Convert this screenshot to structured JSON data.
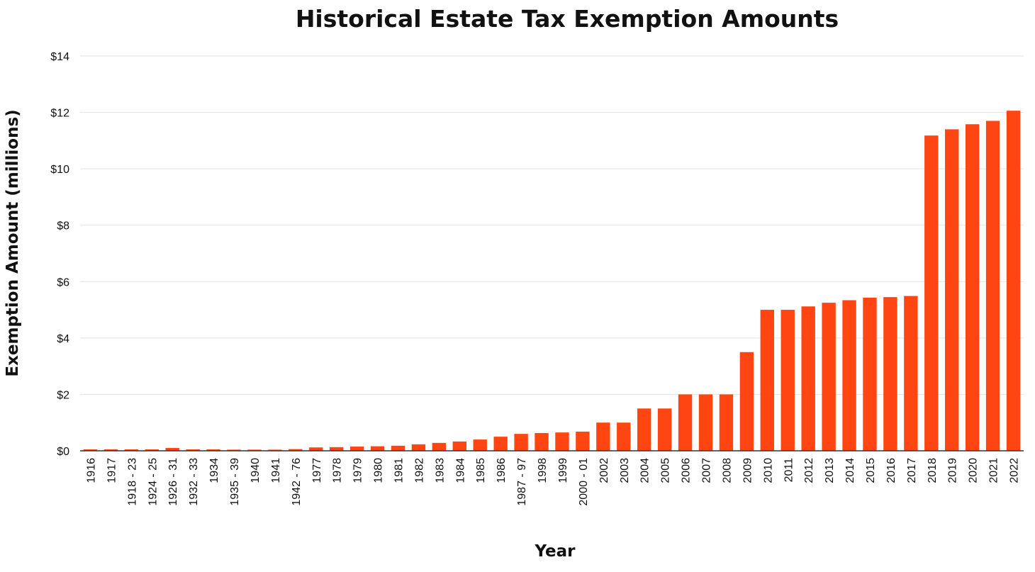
{
  "chart_data": {
    "type": "bar",
    "title": "Historical Estate Tax Exemption Amounts",
    "xlabel": "Year",
    "ylabel": "Exemption Amount (millions)",
    "ylim": [
      0,
      14
    ],
    "yticks": [
      "$0",
      "$2",
      "$4",
      "$6",
      "$8",
      "$10",
      "$12",
      "$14"
    ],
    "grid": true,
    "bar_color": "#FF4612",
    "categories": [
      "1916",
      "1917",
      "1918 - 23",
      "1924 - 25",
      "1926 - 31",
      "1932 - 33",
      "1934",
      "1935 - 39",
      "1940",
      "1941",
      "1942 - 76",
      "1977",
      "1978",
      "1979",
      "1980",
      "1981",
      "1982",
      "1983",
      "1984",
      "1985",
      "1986",
      "1987 - 97",
      "1998",
      "1999",
      "2000 - 01",
      "2002",
      "2003",
      "2004",
      "2005",
      "2006",
      "2007",
      "2008",
      "2009",
      "2010",
      "2011",
      "2012",
      "2013",
      "2014",
      "2015",
      "2016",
      "2017",
      "2018",
      "2019",
      "2020",
      "2021",
      "2022"
    ],
    "values": [
      0.05,
      0.05,
      0.05,
      0.05,
      0.1,
      0.05,
      0.05,
      0.04,
      0.04,
      0.04,
      0.06,
      0.12,
      0.13,
      0.15,
      0.16,
      0.18,
      0.23,
      0.28,
      0.33,
      0.4,
      0.5,
      0.6,
      0.63,
      0.65,
      0.68,
      1.0,
      1.0,
      1.5,
      1.5,
      2.0,
      2.0,
      2.0,
      3.5,
      5.0,
      5.0,
      5.12,
      5.25,
      5.34,
      5.43,
      5.45,
      5.49,
      11.18,
      11.4,
      11.58,
      11.7,
      12.06
    ]
  }
}
